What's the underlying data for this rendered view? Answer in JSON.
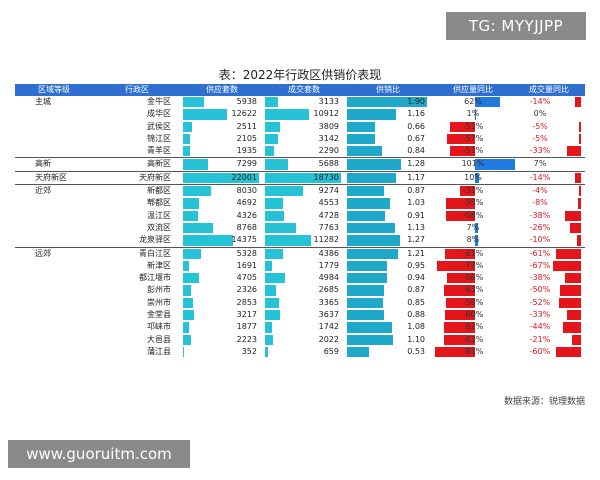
{
  "badge": "TG: MYYJJPP",
  "title": "表：2022年行政区供销价表现",
  "headers": [
    "区域等级",
    "行政区",
    "供应套数",
    "成交套数",
    "供销比",
    "供应量同比",
    "成交量同比"
  ],
  "rows": [
    {
      "region": "主城",
      "district": "金牛区",
      "supply": "5938",
      "deal": "3133",
      "ratio": "1.90",
      "supply_yoy": "62%",
      "deal_yoy": "-14%"
    },
    {
      "region": "",
      "district": "成华区",
      "supply": "12622",
      "deal": "10912",
      "ratio": "1.16",
      "supply_yoy": "1%",
      "deal_yoy": "0%"
    },
    {
      "region": "",
      "district": "武侯区",
      "supply": "2511",
      "deal": "3809",
      "ratio": "0.66",
      "supply_yoy": "-51%",
      "deal_yoy": "-5%"
    },
    {
      "region": "",
      "district": "锦江区",
      "supply": "2105",
      "deal": "3142",
      "ratio": "0.67",
      "supply_yoy": "-57%",
      "deal_yoy": "-5%"
    },
    {
      "region": "",
      "district": "青羊区",
      "supply": "1935",
      "deal": "2290",
      "ratio": "0.84",
      "supply_yoy": "-51%",
      "deal_yoy": "-33%"
    },
    {
      "region": "高新",
      "district": "高新区",
      "supply": "7299",
      "deal": "5688",
      "ratio": "1.28",
      "supply_yoy": "101%",
      "deal_yoy": "7%"
    },
    {
      "region": "天府新区",
      "district": "天府新区",
      "supply": "22001",
      "deal": "18730",
      "ratio": "1.17",
      "supply_yoy": "10%",
      "deal_yoy": "-14%"
    },
    {
      "region": "近郊",
      "district": "新都区",
      "supply": "8030",
      "deal": "9274",
      "ratio": "0.87",
      "supply_yoy": "-31%",
      "deal_yoy": "-4%"
    },
    {
      "region": "",
      "district": "郫都区",
      "supply": "4692",
      "deal": "4553",
      "ratio": "1.03",
      "supply_yoy": "-58%",
      "deal_yoy": "-8%"
    },
    {
      "region": "",
      "district": "温江区",
      "supply": "4326",
      "deal": "4728",
      "ratio": "0.91",
      "supply_yoy": "-58%",
      "deal_yoy": "-38%"
    },
    {
      "region": "",
      "district": "双流区",
      "supply": "8768",
      "deal": "7763",
      "ratio": "1.13",
      "supply_yoy": "7%",
      "deal_yoy": "-26%"
    },
    {
      "region": "",
      "district": "龙泉驿区",
      "supply": "14375",
      "deal": "11282",
      "ratio": "1.27",
      "supply_yoy": "8%",
      "deal_yoy": "-10%"
    },
    {
      "region": "远郊",
      "district": "青白江区",
      "supply": "5328",
      "deal": "4386",
      "ratio": "1.21",
      "supply_yoy": "-61%",
      "deal_yoy": "-61%"
    },
    {
      "region": "",
      "district": "新津区",
      "supply": "1691",
      "deal": "1779",
      "ratio": "0.95",
      "supply_yoy": "-77%",
      "deal_yoy": "-67%"
    },
    {
      "region": "",
      "district": "都江堰市",
      "supply": "4705",
      "deal": "4984",
      "ratio": "0.94",
      "supply_yoy": "-56%",
      "deal_yoy": "-38%"
    },
    {
      "region": "",
      "district": "彭州市",
      "supply": "2326",
      "deal": "2685",
      "ratio": "0.87",
      "supply_yoy": "-63%",
      "deal_yoy": "-50%"
    },
    {
      "region": "",
      "district": "崇州市",
      "supply": "2853",
      "deal": "3365",
      "ratio": "0.85",
      "supply_yoy": "-58%",
      "deal_yoy": "-52%"
    },
    {
      "region": "",
      "district": "金堂县",
      "supply": "3217",
      "deal": "3637",
      "ratio": "0.88",
      "supply_yoy": "-60%",
      "deal_yoy": "-33%"
    },
    {
      "region": "",
      "district": "邛崃市",
      "supply": "1877",
      "deal": "1742",
      "ratio": "1.08",
      "supply_yoy": "-62%",
      "deal_yoy": "-44%"
    },
    {
      "region": "",
      "district": "大邑县",
      "supply": "2223",
      "deal": "2022",
      "ratio": "1.10",
      "supply_yoy": "-63%",
      "deal_yoy": "-21%"
    },
    {
      "region": "",
      "district": "蒲江县",
      "supply": "352",
      "deal": "659",
      "ratio": "0.53",
      "supply_yoy": "-81%",
      "deal_yoy": "-60%"
    }
  ],
  "source": "数据来源：锐理数据",
  "watermark": "www.guoruitm.com",
  "colors": {
    "header": "#2e6fd0",
    "bar": "#26c3d6",
    "negative": "#e4161c",
    "positive": "#1f7be0"
  }
}
